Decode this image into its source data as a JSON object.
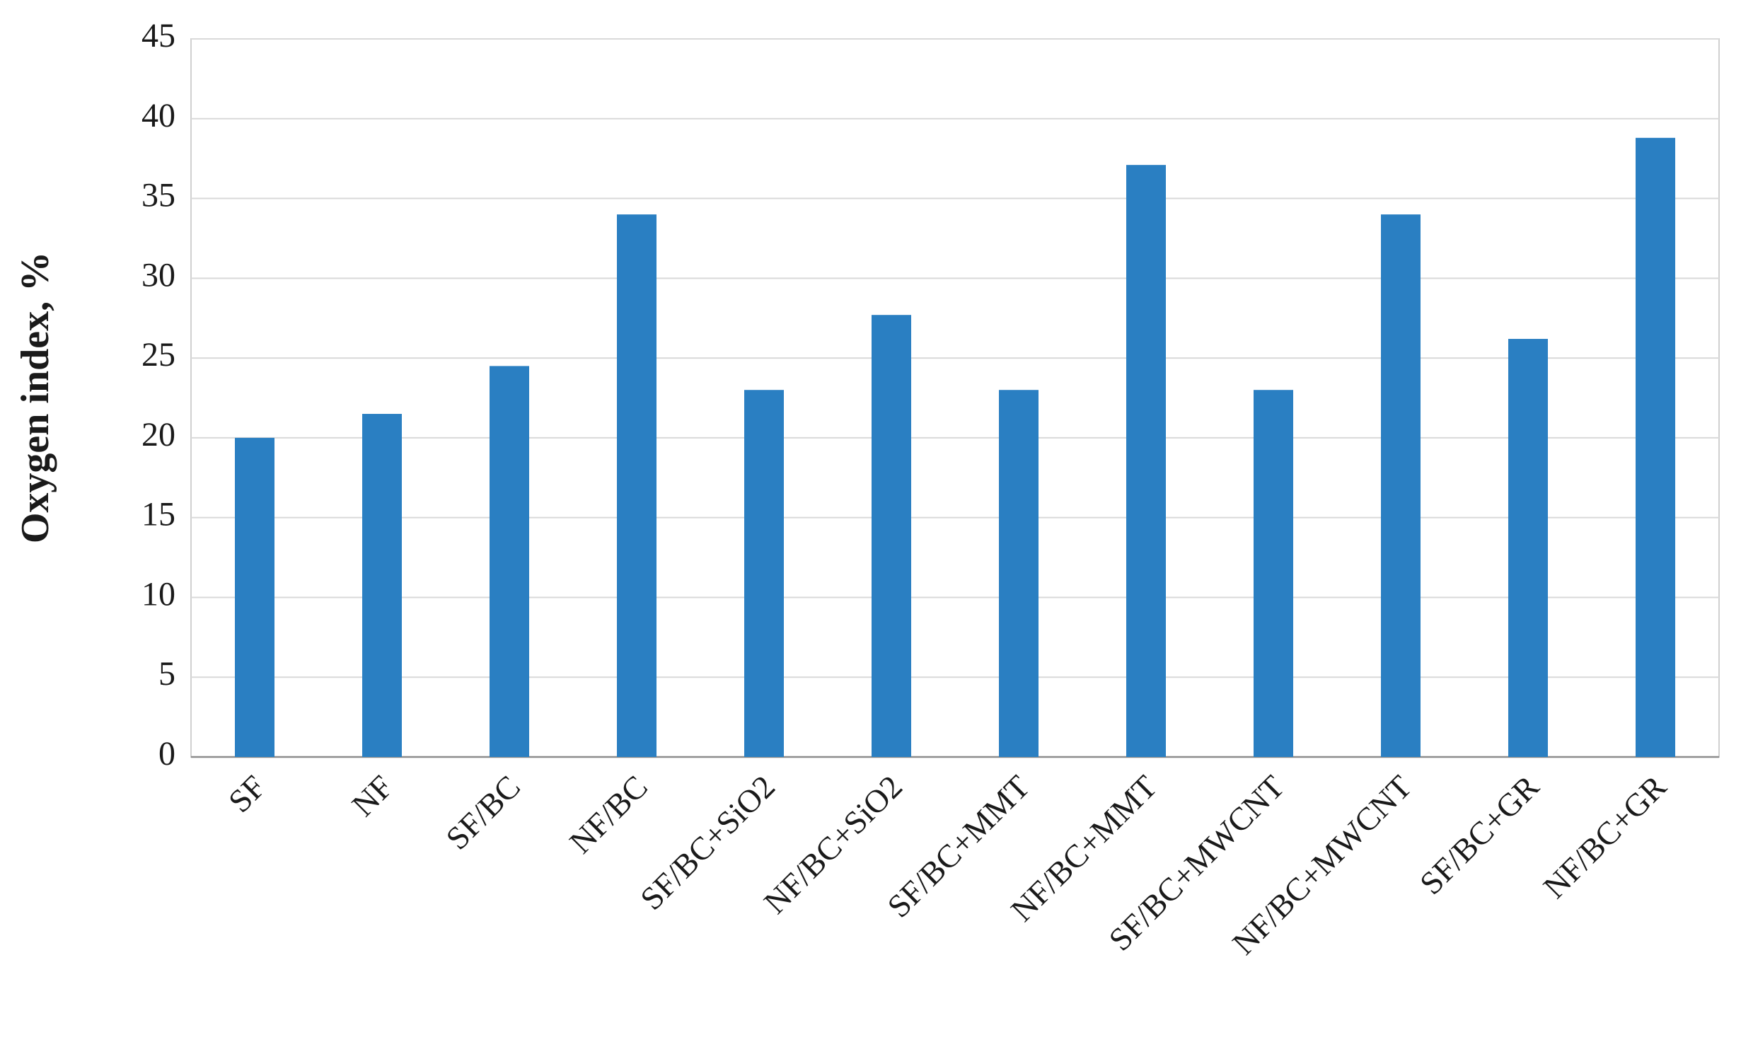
{
  "chart_data": {
    "type": "bar",
    "y_label": "Oxygen index, %",
    "categories": [
      "SF",
      "NF",
      "SF/BC",
      "NF/BC",
      "SF/BC+SiO2",
      "NF/BC+SiO2",
      "SF/BC+MMT",
      "NF/BC+MMT",
      "SF/BC+MWCNT",
      "NF/BC+MWCNT",
      "SF/BC+GR",
      "NF/BC+GR"
    ],
    "values": [
      20,
      21.5,
      24.5,
      34,
      23,
      27.7,
      23,
      37.1,
      23,
      34,
      26.2,
      38.8
    ],
    "color": "#2a7fc2",
    "ylim": [
      0,
      45
    ],
    "yticks": [
      0,
      5,
      10,
      15,
      20,
      25,
      30,
      35,
      40,
      45
    ],
    "grid": true
  }
}
